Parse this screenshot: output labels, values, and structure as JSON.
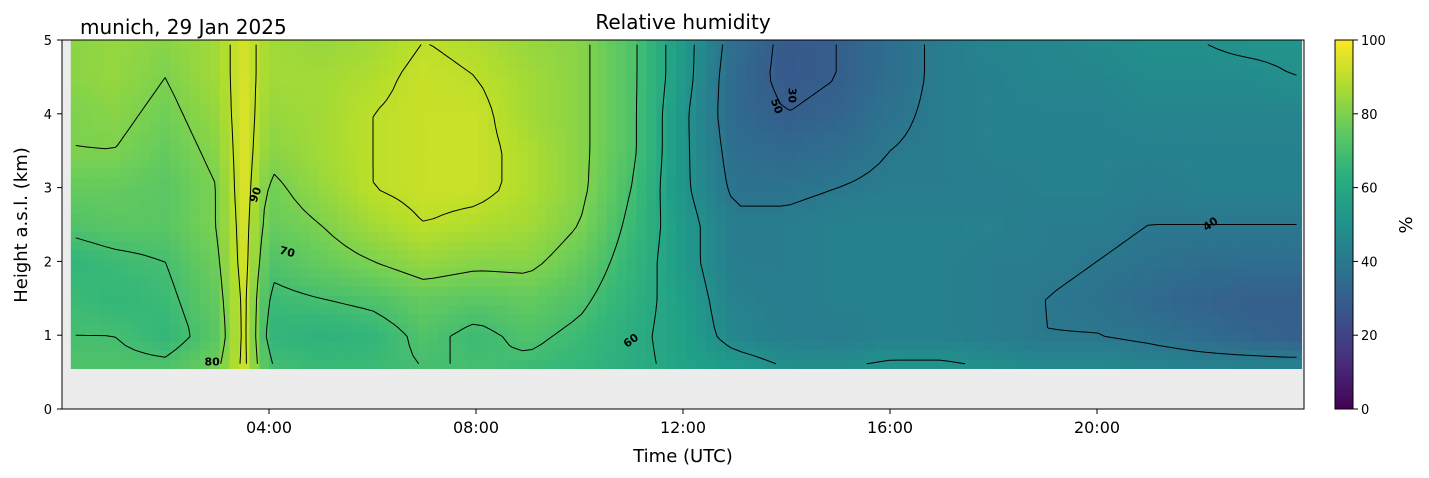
{
  "chart_data": {
    "type": "heatmap",
    "title": "Relative humidity",
    "subtitle": "munich, 29 Jan 2025",
    "xlabel": "Time (UTC)",
    "ylabel": "Height a.s.l. (km)",
    "xlim_hours": [
      0,
      24
    ],
    "ylim": [
      0,
      5
    ],
    "x_tick_labels": [
      "04:00",
      "08:00",
      "12:00",
      "16:00",
      "20:00"
    ],
    "x_tick_hours": [
      4,
      8,
      12,
      16,
      20
    ],
    "y_ticks": [
      0,
      1,
      2,
      3,
      4,
      5
    ],
    "data_start_hour": 0.17,
    "data_bottom_km": 0.55,
    "colorbar": {
      "label": "%",
      "ticks": [
        0,
        20,
        40,
        60,
        80,
        100
      ],
      "range": [
        0,
        100
      ],
      "colormap": "viridis"
    },
    "height_levels_km": [
      0.55,
      1.0,
      1.5,
      2.0,
      2.5,
      3.0,
      3.5,
      4.0,
      4.5,
      5.0
    ],
    "time_hours": [
      0.2,
      1,
      2,
      3,
      3.5,
      4,
      5,
      6,
      7,
      8,
      9,
      10,
      11,
      12,
      13,
      14,
      15,
      16,
      17,
      18,
      19,
      20,
      21,
      22,
      23,
      23.8
    ],
    "rh_percent": [
      [
        72,
        72,
        72,
        78,
        93,
        70,
        68,
        68,
        70,
        70,
        68,
        66,
        62,
        58,
        55,
        50,
        50,
        52,
        52,
        50,
        48,
        48,
        46,
        45,
        45,
        45
      ],
      [
        70,
        70,
        66,
        74,
        93,
        66,
        64,
        66,
        72,
        68,
        72,
        68,
        62,
        57,
        46,
        43,
        42,
        44,
        44,
        42,
        40,
        40,
        38,
        35,
        32,
        30
      ],
      [
        68,
        66,
        68,
        76,
        93,
        68,
        70,
        72,
        76,
        74,
        76,
        72,
        64,
        56,
        44,
        42,
        44,
        44,
        44,
        42,
        40,
        38,
        34,
        32,
        30,
        30
      ],
      [
        66,
        68,
        70,
        78,
        94,
        72,
        76,
        80,
        84,
        82,
        82,
        76,
        66,
        54,
        42,
        42,
        44,
        44,
        44,
        42,
        42,
        40,
        38,
        36,
        36,
        36
      ],
      [
        72,
        74,
        74,
        80,
        94,
        76,
        80,
        86,
        90,
        88,
        86,
        80,
        68,
        54,
        42,
        42,
        44,
        44,
        44,
        44,
        42,
        42,
        40,
        40,
        40,
        40
      ],
      [
        76,
        76,
        74,
        80,
        95,
        78,
        84,
        90,
        92,
        92,
        88,
        82,
        70,
        52,
        38,
        38,
        40,
        42,
        42,
        42,
        44,
        44,
        42,
        44,
        44,
        44
      ],
      [
        80,
        80,
        76,
        82,
        95,
        82,
        86,
        90,
        92,
        92,
        88,
        82,
        72,
        52,
        36,
        34,
        36,
        40,
        42,
        44,
        44,
        44,
        44,
        44,
        44,
        44
      ],
      [
        80,
        82,
        78,
        84,
        95,
        84,
        86,
        90,
        92,
        92,
        86,
        82,
        72,
        52,
        34,
        30,
        32,
        38,
        42,
        44,
        44,
        44,
        46,
        46,
        46,
        46
      ],
      [
        82,
        84,
        80,
        86,
        94,
        86,
        86,
        88,
        92,
        90,
        86,
        82,
        72,
        54,
        34,
        28,
        30,
        36,
        42,
        44,
        46,
        46,
        48,
        48,
        48,
        50
      ],
      [
        82,
        84,
        82,
        86,
        94,
        86,
        84,
        86,
        90,
        88,
        84,
        82,
        72,
        54,
        36,
        28,
        30,
        36,
        42,
        46,
        46,
        48,
        50,
        50,
        52,
        52
      ]
    ],
    "contour_levels": [
      30,
      40,
      50,
      60,
      70,
      80,
      90
    ],
    "contour_labels": [
      "90",
      "80",
      "70",
      "60",
      "50",
      "40",
      "30"
    ]
  }
}
